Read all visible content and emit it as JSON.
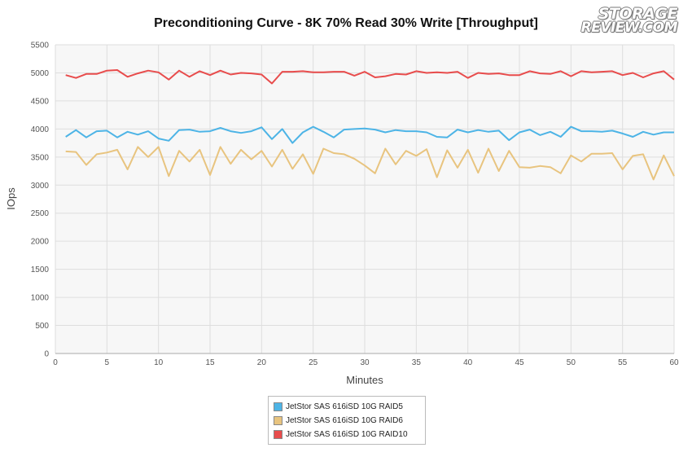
{
  "chart_data": {
    "type": "line",
    "title": "Preconditioning Curve - 8K 70% Read 30% Write [Throughput]",
    "xlabel": "Minutes",
    "ylabel": "IOps",
    "xlim": [
      0,
      60
    ],
    "ylim": [
      0,
      5500
    ],
    "x_ticks": [
      0,
      5,
      10,
      15,
      20,
      25,
      30,
      35,
      40,
      45,
      50,
      55,
      60
    ],
    "y_ticks": [
      0,
      500,
      1000,
      1500,
      2000,
      2500,
      3000,
      3500,
      4000,
      4500,
      5000,
      5500
    ],
    "grid": true,
    "legend_position": "bottom",
    "x": [
      1,
      2,
      3,
      4,
      5,
      6,
      7,
      8,
      9,
      10,
      11,
      12,
      13,
      14,
      15,
      16,
      17,
      18,
      19,
      20,
      21,
      22,
      23,
      24,
      25,
      26,
      27,
      28,
      29,
      30,
      31,
      32,
      33,
      34,
      35,
      36,
      37,
      38,
      39,
      40,
      41,
      42,
      43,
      44,
      45,
      46,
      47,
      48,
      49,
      50,
      51,
      52,
      53,
      54,
      55,
      56,
      57,
      58,
      59,
      60
    ],
    "series": [
      {
        "name": "JetStor SAS 616iSD 10G RAID5",
        "color": "#4db4e6",
        "values": [
          3860,
          3980,
          3850,
          3960,
          3970,
          3850,
          3950,
          3900,
          3960,
          3830,
          3790,
          3980,
          3990,
          3950,
          3960,
          4020,
          3960,
          3930,
          3960,
          4030,
          3820,
          4000,
          3750,
          3940,
          4040,
          3950,
          3850,
          3990,
          4000,
          4010,
          3990,
          3940,
          3980,
          3960,
          3960,
          3940,
          3860,
          3850,
          3990,
          3940,
          3980,
          3950,
          3970,
          3800,
          3940,
          3990,
          3890,
          3950,
          3860,
          4040,
          3960,
          3960,
          3950,
          3970,
          3920,
          3860,
          3950,
          3900,
          3940,
          3940
        ]
      },
      {
        "name": "JetStor SAS 616iSD 10G RAID6",
        "color": "#e8c47f",
        "values": [
          3600,
          3590,
          3360,
          3550,
          3580,
          3630,
          3280,
          3680,
          3500,
          3680,
          3160,
          3610,
          3420,
          3630,
          3180,
          3680,
          3380,
          3630,
          3460,
          3610,
          3330,
          3630,
          3290,
          3550,
          3200,
          3650,
          3570,
          3550,
          3470,
          3350,
          3210,
          3650,
          3370,
          3610,
          3520,
          3640,
          3140,
          3620,
          3310,
          3630,
          3220,
          3650,
          3250,
          3610,
          3320,
          3310,
          3340,
          3320,
          3210,
          3530,
          3420,
          3560,
          3560,
          3570,
          3280,
          3520,
          3550,
          3100,
          3530,
          3160
        ]
      },
      {
        "name": "JetStor SAS 616iSD 10G RAID10",
        "color": "#e84c4c",
        "values": [
          4960,
          4910,
          4980,
          4980,
          5040,
          5050,
          4930,
          4990,
          5040,
          5010,
          4880,
          5040,
          4930,
          5030,
          4960,
          5040,
          4970,
          5000,
          4990,
          4970,
          4810,
          5020,
          5020,
          5030,
          5010,
          5010,
          5020,
          5020,
          4950,
          5020,
          4920,
          4940,
          4980,
          4970,
          5030,
          5000,
          5010,
          5000,
          5020,
          4910,
          5000,
          4980,
          4990,
          4960,
          4960,
          5030,
          4990,
          4980,
          5030,
          4940,
          5030,
          5010,
          5020,
          5030,
          4960,
          5000,
          4920,
          4990,
          5030,
          4880
        ]
      }
    ]
  },
  "logo": {
    "line1": "STORAGE",
    "line2": "REVIEW.COM"
  }
}
